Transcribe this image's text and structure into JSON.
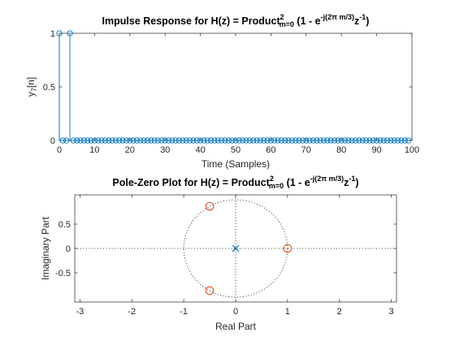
{
  "figure": {
    "background": "#ffffff",
    "axes_color": "#262626",
    "stem_color": "#0072BD",
    "zero_color": "#D95319",
    "pole_color": "#0072BD"
  },
  "chart_data": [
    {
      "type": "stem",
      "title": {
        "prefix": "Impulse Response for H(z) = Product",
        "sup": "2",
        "sub": "m=0",
        "middle": " (1 - e",
        "exp": "-j(2π m/3)",
        "z": "z",
        "zexp": "-1",
        "suffix": ")"
      },
      "xlabel": "Time (Samples)",
      "ylabel": {
        "base": "y",
        "sub": "7",
        "rest": "[n]"
      },
      "xlim": [
        0,
        100
      ],
      "ylim": [
        0,
        1
      ],
      "xticks": [
        0,
        10,
        20,
        30,
        40,
        50,
        60,
        70,
        80,
        90,
        100
      ],
      "xtick_labels": [
        "0",
        "10",
        "20",
        "30",
        "40",
        "50",
        "60",
        "70",
        "80",
        "90",
        "100"
      ],
      "yticks": [
        0,
        0.5,
        1
      ],
      "ytick_labels": [
        "0",
        "0.5",
        "1"
      ],
      "series": [
        {
          "x_start": 0,
          "x_end": 99,
          "values": [
            1,
            0,
            0,
            1
          ]
        }
      ]
    },
    {
      "type": "scatter",
      "subtype": "pole-zero",
      "title": {
        "prefix": "Pole-Zero Plot for H(z) = Product",
        "sup": "2",
        "sub": "m=0",
        "middle": " (1 - e",
        "exp": "-j(2π m/3)",
        "z": "z",
        "zexp": "-1",
        "suffix": ")"
      },
      "xlabel": "Real Part",
      "ylabel": "Imaginary Part",
      "xlim": [
        -3.1,
        3.1
      ],
      "ylim": [
        -1.1,
        1.1
      ],
      "xticks": [
        -3,
        -2,
        -1,
        0,
        1,
        2,
        3
      ],
      "xtick_labels": [
        "-3",
        "-2",
        "-1",
        "0",
        "1",
        "2",
        "3"
      ],
      "yticks": [
        -0.5,
        0,
        0.5
      ],
      "ytick_labels": [
        "-0.5",
        "0",
        "0.5"
      ],
      "unit_circle": true,
      "zeros": [
        {
          "re": 1.0,
          "im": 0.0
        },
        {
          "re": -0.5,
          "im": 0.866
        },
        {
          "re": -0.5,
          "im": -0.866
        }
      ],
      "poles": [
        {
          "re": 0.0,
          "im": 0.0
        }
      ]
    }
  ]
}
